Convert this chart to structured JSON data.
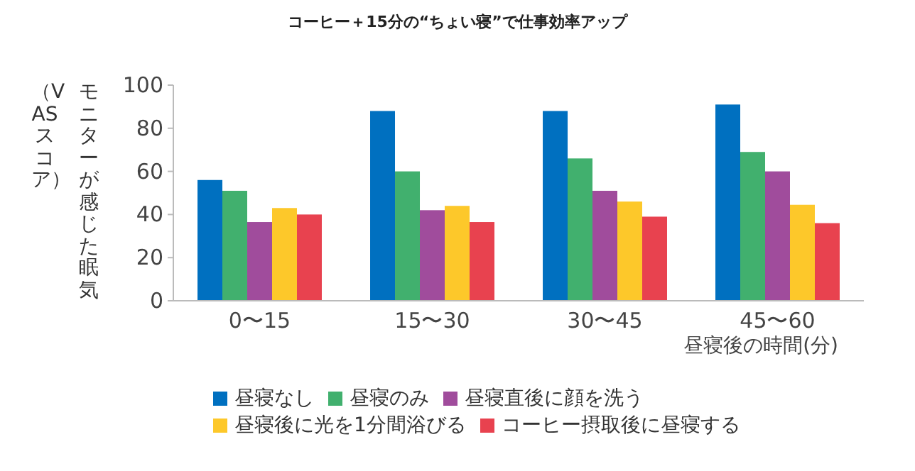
{
  "chart_data": {
    "type": "bar",
    "title": "コーヒー＋15分の“ちょい寝”で仕事効率アップ",
    "xlabel": "昼寝後の時間(分)",
    "ylabel": "モニターが感じた眠気（VASスコア）",
    "categories": [
      "0〜15",
      "15〜30",
      "30〜45",
      "45〜60"
    ],
    "series": [
      {
        "name": "昼寝なし",
        "color": "#0070c0",
        "values": [
          56,
          88,
          88,
          91
        ]
      },
      {
        "name": "昼寝のみ",
        "color": "#41b06e",
        "values": [
          51,
          60,
          66,
          69
        ]
      },
      {
        "name": "昼寝直後に顔を洗う",
        "color": "#a04c9c",
        "values": [
          36.5,
          42,
          51,
          60
        ]
      },
      {
        "name": "昼寝後に光を1分間浴びる",
        "color": "#fdc82a",
        "values": [
          43,
          44,
          46,
          44.5
        ]
      },
      {
        "name": "コーヒー摂取後に昼寝する",
        "color": "#e8424f",
        "values": [
          40,
          36.5,
          39,
          36
        ]
      }
    ],
    "ylim": [
      0,
      100
    ],
    "yticks": [
      0,
      20,
      40,
      60,
      80,
      100
    ],
    "grid": false,
    "legend": "bottom"
  }
}
